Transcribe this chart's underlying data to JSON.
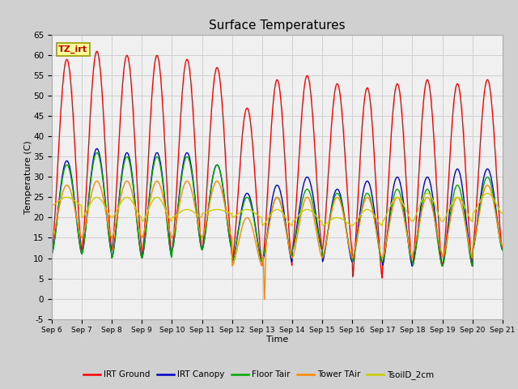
{
  "title": "Surface Temperatures",
  "xlabel": "Time",
  "ylabel": "Temperature (C)",
  "ylim": [
    -5,
    65
  ],
  "annotation_label": "TZ_irt",
  "annotation_color": "#cc0000",
  "annotation_bg": "#ffff99",
  "annotation_border": "#999900",
  "series_colors": {
    "IRT Ground": "#ff0000",
    "IRT Canopy": "#0000cc",
    "Floor Tair": "#00aa00",
    "Tower TAir": "#ff8800",
    "TsoilD_2cm": "#cccc00"
  },
  "xtick_labels": [
    "Sep 6",
    "Sep 7",
    "Sep 8",
    "Sep 9",
    "Sep 10",
    "Sep 11",
    "Sep 12",
    "Sep 13",
    "Sep 14",
    "Sep 15",
    "Sep 16",
    "Sep 17",
    "Sep 18",
    "Sep 19",
    "Sep 20",
    "Sep 21"
  ],
  "grid_color": "#d0d0d0",
  "plot_bg_color": "#f0f0f0",
  "fig_bg_color": "#d0d0d0",
  "legend_colors": [
    "#ff0000",
    "#0000cc",
    "#00aa00",
    "#ff8800",
    "#cccc00"
  ],
  "legend_labels": [
    "IRT Ground",
    "IRT Canopy",
    "Floor Tair",
    "Tower TAir",
    "TsoilD_2cm"
  ],
  "yticks": [
    -5,
    0,
    5,
    10,
    15,
    20,
    25,
    30,
    35,
    40,
    45,
    50,
    55,
    60,
    65
  ],
  "n_days": 15,
  "irt_ground_peaks": [
    59,
    61,
    60,
    60,
    59,
    57,
    47,
    54,
    55,
    53,
    52,
    53,
    54,
    53,
    54
  ],
  "irt_ground_troughs": [
    12,
    12,
    12,
    10,
    12,
    12,
    9,
    8,
    12,
    12,
    5,
    8,
    8,
    8,
    12
  ],
  "irt_canopy_peaks": [
    34,
    37,
    36,
    36,
    36,
    33,
    26,
    28,
    30,
    27,
    29,
    30,
    30,
    32,
    32
  ],
  "irt_canopy_troughs": [
    11,
    11,
    10,
    10,
    12,
    12,
    9,
    9,
    12,
    9,
    9,
    8,
    8,
    8,
    12
  ],
  "floor_tair_peaks": [
    33,
    36,
    35,
    35,
    35,
    33,
    25,
    25,
    27,
    26,
    26,
    27,
    27,
    28,
    30
  ],
  "floor_tair_troughs": [
    11,
    11,
    10,
    10,
    12,
    12,
    9,
    10,
    12,
    10,
    9,
    9,
    8,
    8,
    12
  ],
  "tower_tair_peaks": [
    28,
    29,
    29,
    29,
    29,
    29,
    20,
    25,
    25,
    25,
    25,
    25,
    25,
    25,
    28
  ],
  "tower_tair_troughs": [
    15,
    15,
    15,
    15,
    15,
    15,
    8,
    10,
    10,
    10,
    10,
    10,
    11,
    10,
    13
  ],
  "tsoil_peaks": [
    25,
    25,
    25,
    25,
    22,
    22,
    22,
    22,
    22,
    20,
    22,
    25,
    26,
    25,
    26
  ],
  "tsoil_troughs": [
    23,
    20,
    20,
    19,
    20,
    21,
    20,
    18,
    19,
    18,
    18,
    19,
    19,
    19,
    21
  ]
}
